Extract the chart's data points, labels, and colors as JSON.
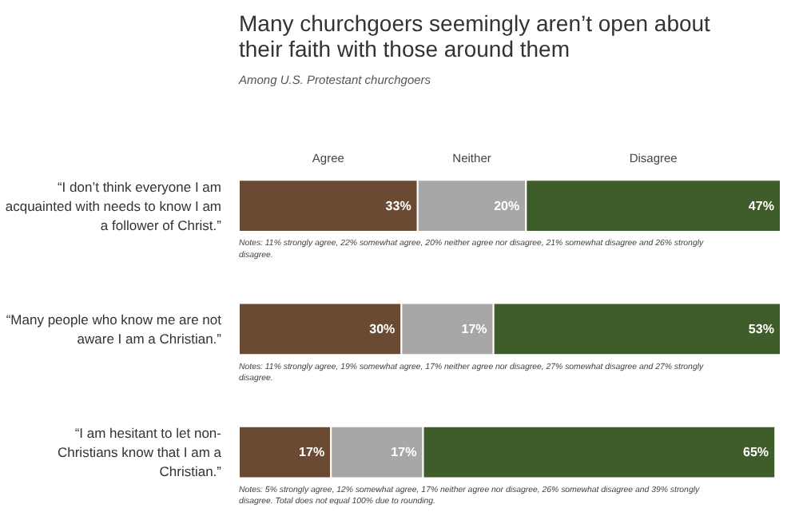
{
  "chart_data": {
    "type": "bar",
    "orientation": "horizontal",
    "stacked": true,
    "title": "Many churchgoers seemingly aren’t open about their faith with those around them",
    "subtitle": "Among U.S. Protestant churchgoers",
    "categories": [
      "“I don’t think everyone I am acquainted with needs to know I am a follower of Christ.”",
      "“Many people who know me are not aware I am a Christian.”",
      "“I am hesitant to let non-Christians know that I am a Christian.”"
    ],
    "series": [
      {
        "name": "Agree",
        "color": "#6b4a33",
        "values": [
          33,
          30,
          17
        ],
        "value_labels": [
          "33%",
          "30%",
          "17%"
        ]
      },
      {
        "name": "Neither",
        "color": "#a8a6a7",
        "values": [
          20,
          17,
          17
        ],
        "value_labels": [
          "20%",
          "17%",
          "17%"
        ]
      },
      {
        "name": "Disagree",
        "color": "#3f5d2a",
        "values": [
          47,
          53,
          65
        ],
        "value_labels": [
          "47%",
          "53%",
          "65%"
        ]
      }
    ],
    "annotations": [
      "Notes: 11% strongly agree, 22% somewhat agree, 20% neither agree nor disagree, 21% somewhat disagree and 26% strongly disagree.",
      "Notes: 11% strongly agree, 19% somewhat agree, 17% neither agree nor disagree, 27% somewhat disagree and 27% strongly disagree.",
      "Notes: 5% strongly agree, 12% somewhat agree, 17% neither agree nor disagree, 26% somewhat disagree and 39% strongly disagree. Total does not equal 100% due to rounding."
    ],
    "legend": "top",
    "grid": false
  }
}
